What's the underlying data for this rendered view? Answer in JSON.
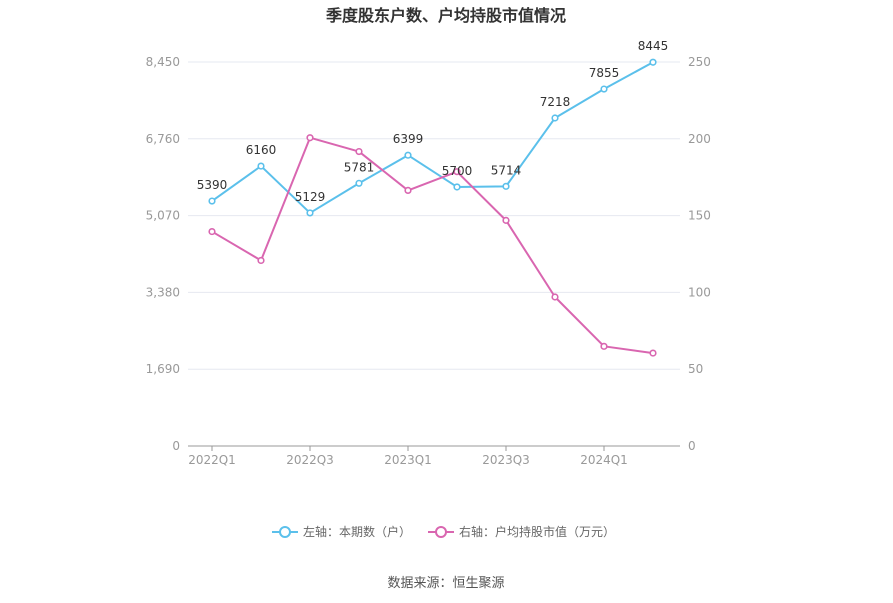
{
  "chart_data": {
    "type": "line",
    "title": "季度股东户数、户均持股市值情况",
    "x": [
      "2022Q1",
      "2022Q2",
      "2022Q3",
      "2022Q4",
      "2023Q1",
      "2023Q2",
      "2023Q3",
      "2023Q4",
      "2024Q1",
      "2024Q2"
    ],
    "x_tick_labels": [
      "2022Q1",
      "2022Q3",
      "2023Q1",
      "2023Q3",
      "2024Q1"
    ],
    "left_axis": {
      "ylim": [
        0,
        8450
      ],
      "tick_labels": [
        "0",
        "1,690",
        "3,380",
        "5,070",
        "6,760",
        "8,450"
      ],
      "tick_values": [
        0,
        1690,
        3380,
        5070,
        6760,
        8450
      ]
    },
    "right_axis": {
      "ylim": [
        0,
        250
      ],
      "tick_labels": [
        "0",
        "50",
        "100",
        "150",
        "200",
        "250"
      ],
      "tick_values": [
        0,
        50,
        100,
        150,
        200,
        250
      ]
    },
    "series": [
      {
        "name": "左轴：本期数（户）",
        "axis": "left",
        "color": "#5bc0eb",
        "values": [
          5390,
          6160,
          5129,
          5781,
          6399,
          5700,
          5714,
          7218,
          7855,
          8445
        ],
        "labels": [
          "5390",
          "6160",
          "5129",
          "5781",
          "6399",
          "5700",
          "5714",
          "7218",
          "7855",
          "8445"
        ]
      },
      {
        "name": "右轴：户均持股市值（万元）",
        "axis": "right",
        "color": "#d966b0",
        "values": [
          139.6,
          120.8,
          200.7,
          191.7,
          166.4,
          178.6,
          146.9,
          97.0,
          64.9,
          60.5
        ]
      }
    ],
    "grid": true,
    "legend_position": "bottom-center"
  },
  "source": "数据来源：恒生聚源"
}
